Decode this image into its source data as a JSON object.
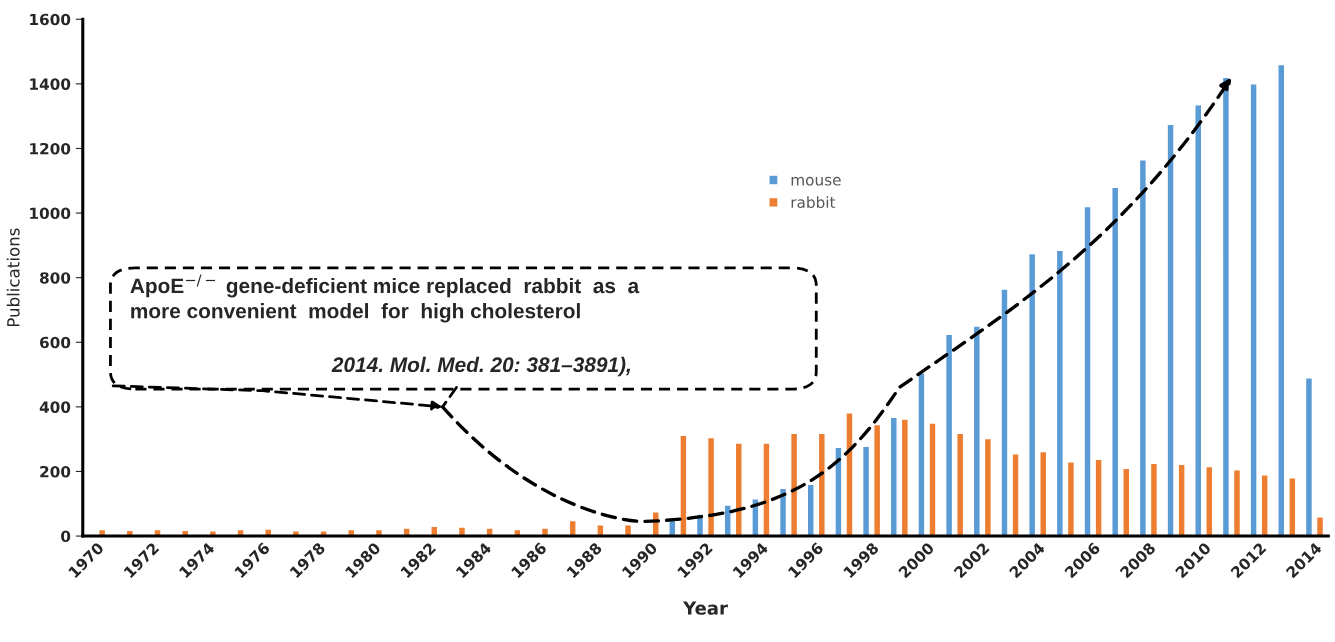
{
  "chart_data": {
    "type": "bar",
    "categories": [
      "1970",
      null,
      "1972",
      null,
      "1974",
      null,
      "1976",
      null,
      "1978",
      null,
      "1980",
      null,
      "1982",
      null,
      "1984",
      null,
      "1986",
      null,
      "1988",
      null,
      "1990",
      null,
      "1992",
      null,
      "1994",
      null,
      "1996",
      null,
      "1998",
      null,
      "2000",
      null,
      "2002",
      null,
      "2004",
      null,
      "2006",
      null,
      "2008",
      null,
      "2010",
      null,
      "2012",
      null,
      "2014"
    ],
    "series": [
      {
        "name": "mouse",
        "color": "#5b9bd5",
        "values": [
          null,
          null,
          null,
          null,
          null,
          null,
          null,
          null,
          null,
          null,
          null,
          null,
          null,
          null,
          null,
          null,
          null,
          null,
          null,
          null,
          null,
          50,
          68,
          96,
          115,
          148,
          160,
          275,
          278,
          368,
          505,
          625,
          650,
          765,
          875,
          885,
          1020,
          1080,
          1165,
          1275,
          1335,
          1420,
          1400,
          1460,
          490
        ]
      },
      {
        "name": "rabbit",
        "color": "#ed7d31",
        "values": [
          20,
          18,
          20,
          18,
          16,
          20,
          22,
          16,
          16,
          20,
          20,
          25,
          30,
          28,
          25,
          20,
          25,
          48,
          35,
          35,
          75,
          312,
          305,
          288,
          288,
          318,
          318,
          382,
          345,
          362,
          350,
          318,
          302,
          255,
          262,
          230,
          238,
          210,
          225,
          222,
          215,
          205,
          190,
          180,
          60
        ]
      }
    ],
    "xlabel": "Year",
    "ylabel": "Publications",
    "ylim": [
      0,
      1600
    ],
    "yticks": [
      0,
      200,
      400,
      600,
      800,
      1000,
      1200,
      1400,
      1600
    ],
    "legend": "center",
    "grid": false,
    "annotations": [
      "ApoE$^{−/−}$ gene-deficient mice replaced  rabbit  as  a\nmore convenient  model  for  high cholesterol",
      "2014. Mol. Med. 20: 381–3891),"
    ]
  }
}
